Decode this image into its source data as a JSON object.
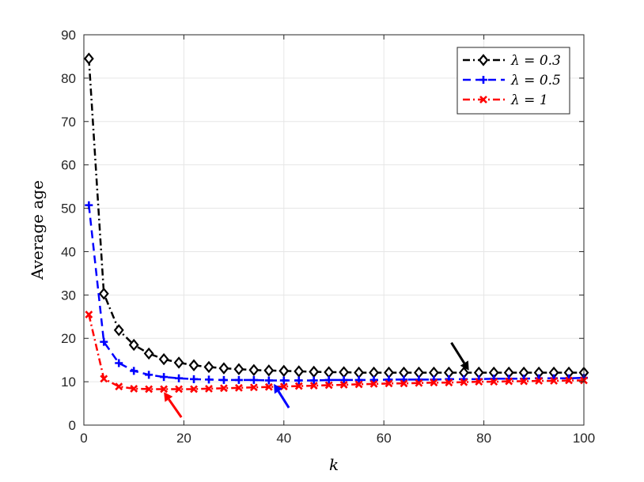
{
  "chart_data": {
    "type": "line",
    "xlabel": "k",
    "ylabel": "Average age",
    "xlim": [
      0,
      100
    ],
    "ylim": [
      0,
      90
    ],
    "xticks": [
      0,
      20,
      40,
      60,
      80,
      100
    ],
    "yticks": [
      0,
      10,
      20,
      30,
      40,
      50,
      60,
      70,
      80,
      90
    ],
    "grid": true,
    "legend_position": "top-right",
    "x": [
      1,
      4,
      7,
      10,
      13,
      16,
      19,
      22,
      25,
      28,
      31,
      34,
      37,
      40,
      43,
      46,
      49,
      52,
      55,
      58,
      61,
      64,
      67,
      70,
      73,
      76,
      79,
      82,
      85,
      88,
      91,
      94,
      97,
      100
    ],
    "series": [
      {
        "name": "λ = 0.3",
        "color": "#000000",
        "marker": "diamond",
        "line_style": "dash-dot",
        "values": [
          84.5,
          30.3,
          21.9,
          18.5,
          16.5,
          15.2,
          14.4,
          13.8,
          13.4,
          13.1,
          12.9,
          12.7,
          12.6,
          12.5,
          12.4,
          12.3,
          12.2,
          12.2,
          12.1,
          12.1,
          12.1,
          12.1,
          12.1,
          12.1,
          12.1,
          12.1,
          12.1,
          12.1,
          12.1,
          12.1,
          12.1,
          12.1,
          12.1,
          12.1
        ]
      },
      {
        "name": "λ = 0.5",
        "color": "#0000ff",
        "marker": "plus",
        "line_style": "dashed",
        "values": [
          50.7,
          19.2,
          14.3,
          12.5,
          11.6,
          11.1,
          10.8,
          10.6,
          10.5,
          10.4,
          10.4,
          10.4,
          10.3,
          10.3,
          10.3,
          10.3,
          10.4,
          10.4,
          10.4,
          10.4,
          10.5,
          10.5,
          10.5,
          10.5,
          10.6,
          10.6,
          10.6,
          10.7,
          10.7,
          10.7,
          10.8,
          10.8,
          10.8,
          10.9
        ]
      },
      {
        "name": "λ = 1",
        "color": "#ff0000",
        "marker": "x",
        "line_style": "dash-dot",
        "values": [
          25.5,
          10.7,
          8.9,
          8.4,
          8.3,
          8.3,
          8.3,
          8.3,
          8.4,
          8.5,
          8.6,
          8.7,
          8.8,
          8.9,
          9.0,
          9.1,
          9.2,
          9.3,
          9.4,
          9.5,
          9.6,
          9.6,
          9.7,
          9.8,
          9.8,
          9.9,
          10.0,
          10.0,
          10.1,
          10.1,
          10.2,
          10.2,
          10.3,
          10.3
        ]
      }
    ],
    "annotations": [
      {
        "type": "arrow",
        "color": "#000000",
        "from": [
          73.5,
          19
        ],
        "to": [
          77,
          12.6
        ]
      },
      {
        "type": "arrow",
        "color": "#0000ff",
        "from": [
          41,
          4
        ],
        "to": [
          38,
          9.5
        ]
      },
      {
        "type": "arrow",
        "color": "#ff0000",
        "from": [
          19.5,
          1.8
        ],
        "to": [
          16,
          7.6
        ]
      }
    ]
  }
}
